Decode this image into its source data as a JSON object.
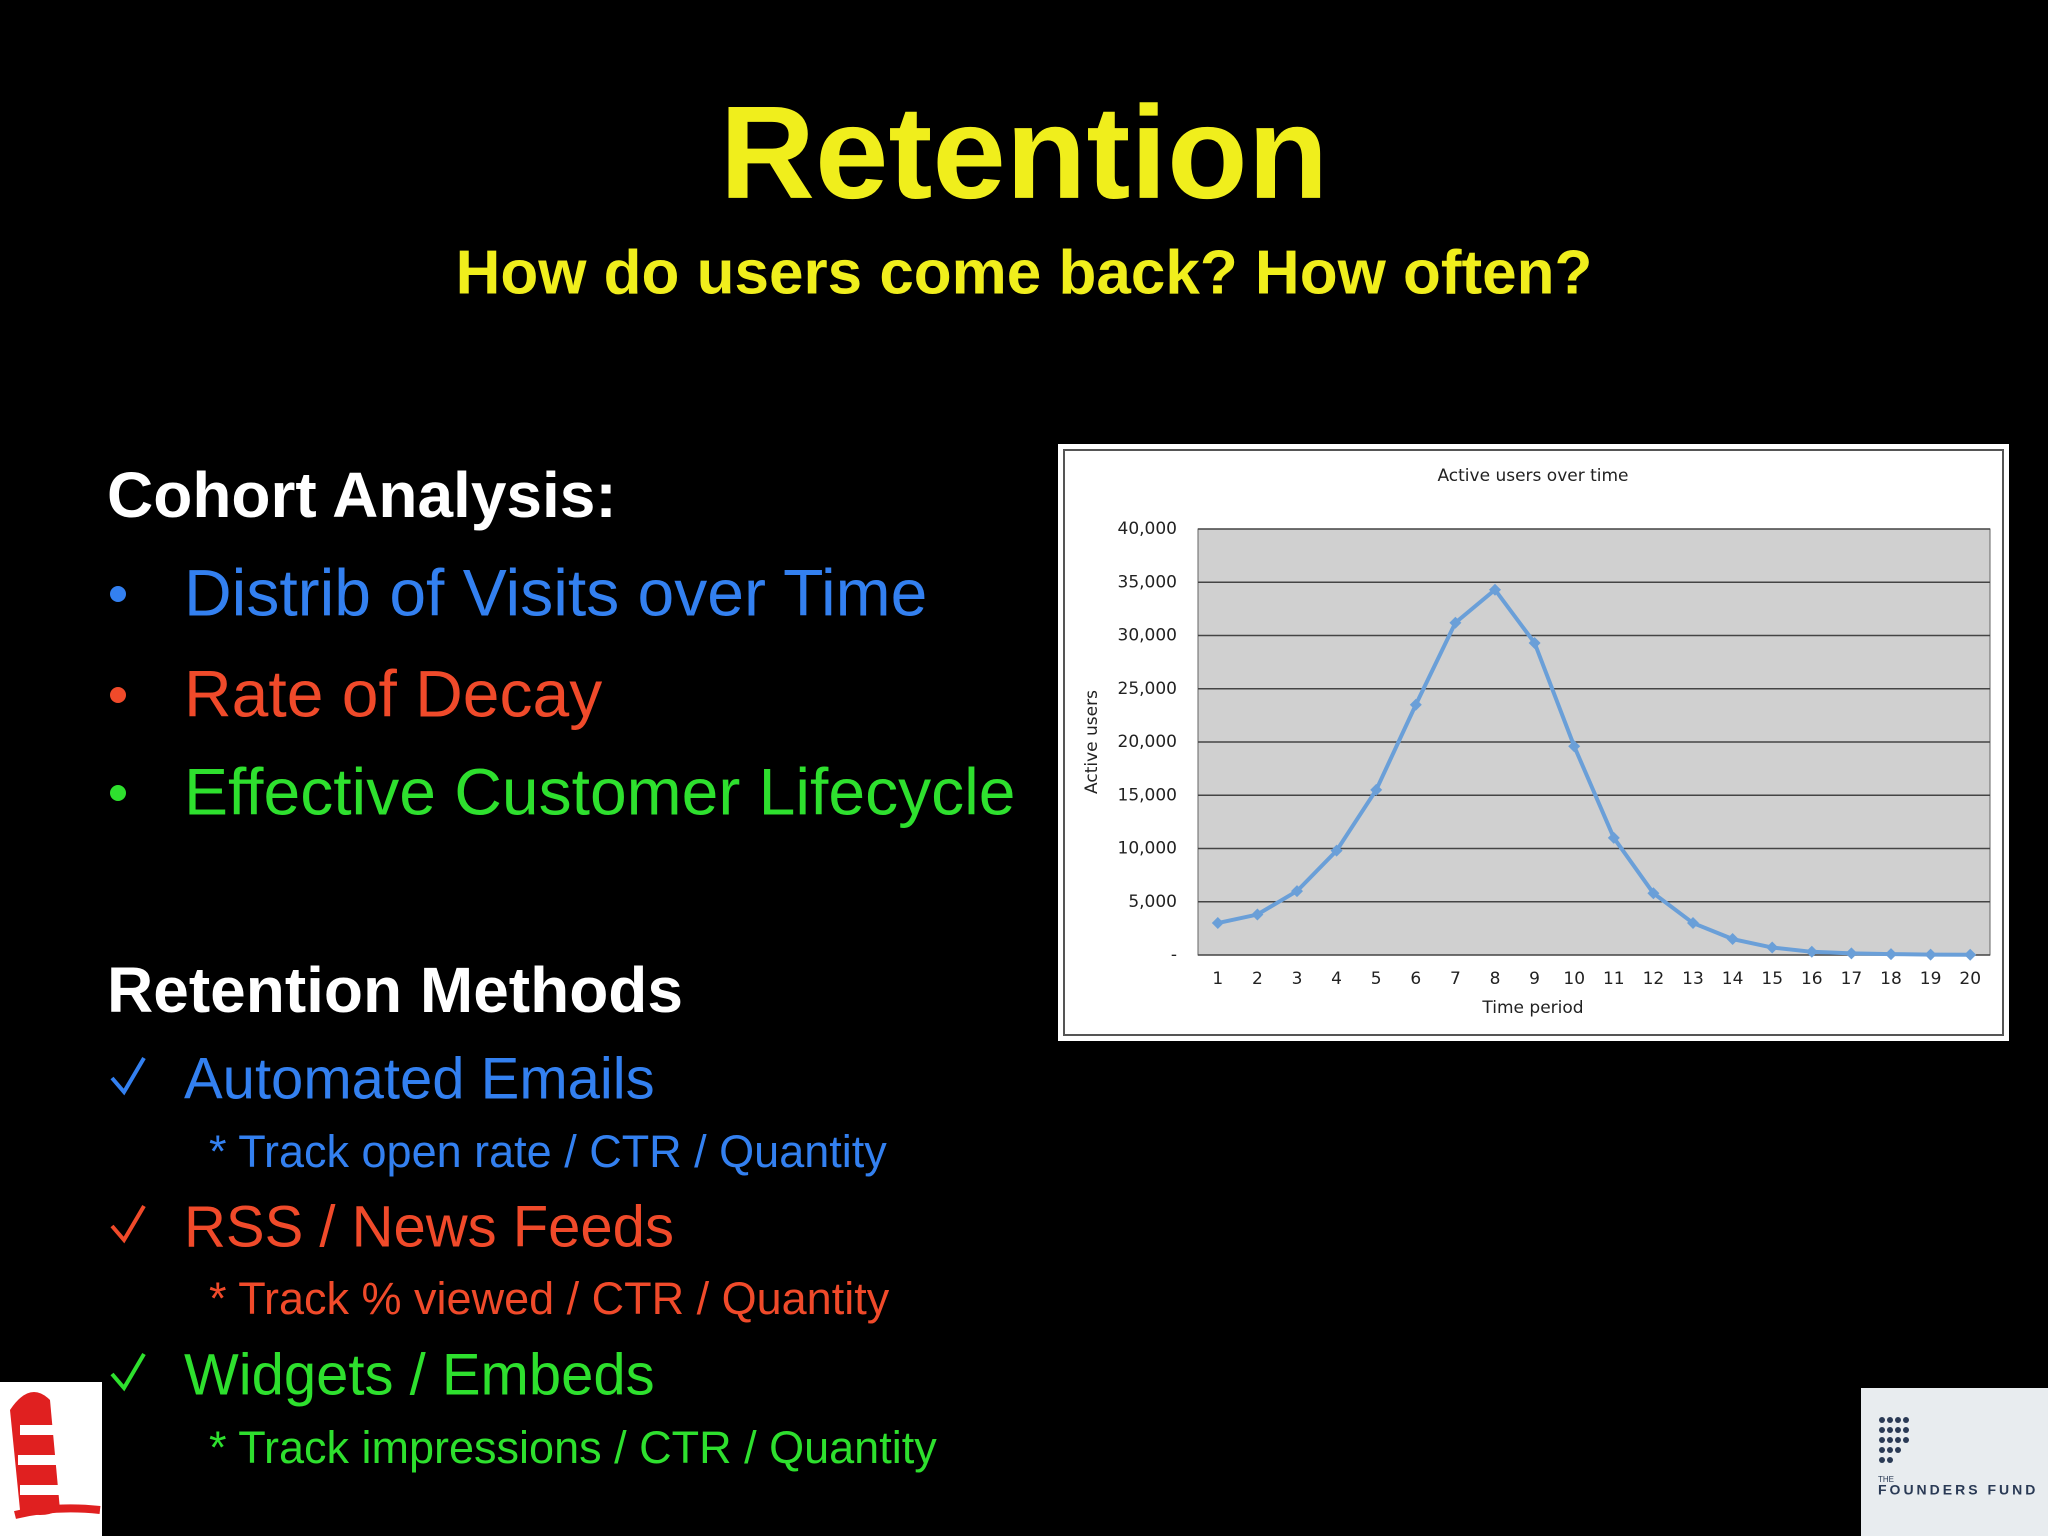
{
  "slide": {
    "title": "Retention",
    "subtitle": "How do users come back? How often?",
    "section_1": {
      "heading": "Cohort Analysis:",
      "bullets": [
        "Distrib of Visits over Time",
        "Rate of Decay",
        "Effective Customer Lifecycle"
      ]
    },
    "section_2": {
      "heading": "Retention Methods",
      "items": [
        {
          "text": "Automated Emails",
          "detail": "* Track open rate / CTR / Quantity"
        },
        {
          "text": "RSS / News Feeds",
          "detail": "* Track % viewed / CTR / Quantity"
        },
        {
          "text": "Widgets / Embeds",
          "detail": "* Track impressions / CTR / Quantity"
        }
      ]
    },
    "logo": {
      "small": "THE",
      "name": "FOUNDERS FUND"
    }
  },
  "chart_data": {
    "type": "line",
    "title": "Active users over time",
    "x_label": "Time period",
    "y_label": "Active users",
    "categories": [
      "1",
      "2",
      "3",
      "4",
      "5",
      "6",
      "7",
      "8",
      "9",
      "10",
      "11",
      "12",
      "13",
      "14",
      "15",
      "16",
      "17",
      "18",
      "19",
      "20"
    ],
    "series": [
      {
        "name": "Active users",
        "color": "#6a9fd8",
        "values": [
          3000,
          3800,
          6000,
          9800,
          15500,
          23500,
          31200,
          34300,
          29300,
          19600,
          11000,
          5800,
          3000,
          1500,
          700,
          300,
          150,
          80,
          40,
          20
        ]
      }
    ],
    "ylim": [
      0,
      40000
    ],
    "yticks": [
      {
        "value": 0,
        "label": "-"
      },
      {
        "value": 5000,
        "label": "5,000"
      },
      {
        "value": 10000,
        "label": "10,000"
      },
      {
        "value": 15000,
        "label": "15,000"
      },
      {
        "value": 20000,
        "label": "20,000"
      },
      {
        "value": 25000,
        "label": "25,000"
      },
      {
        "value": 30000,
        "label": "30,000"
      },
      {
        "value": 35000,
        "label": "35,000"
      },
      {
        "value": 40000,
        "label": "40,000"
      }
    ],
    "grid": true
  }
}
